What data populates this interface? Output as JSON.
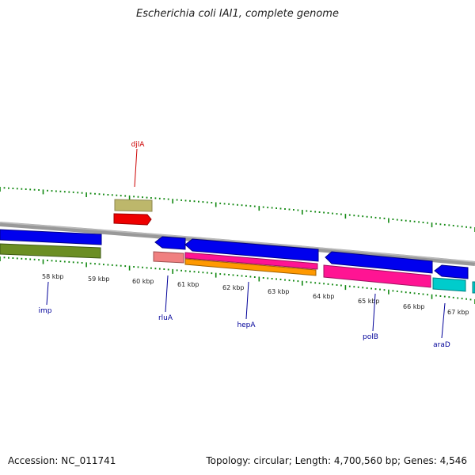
{
  "title": "Escherichia coli IAI1, complete genome",
  "footer": {
    "accession": "Accession: NC_011741",
    "summary": "Topology: circular; Length: 4,700,560 bp; Genes: 4,546"
  },
  "scale_labels": [
    "58 kbp",
    "59 kbp",
    "60 kbp",
    "61 kbp",
    "62 kbp",
    "63 kbp",
    "64 kbp",
    "65 kbp",
    "66 kbp",
    "67 kbp"
  ],
  "gene_labels": {
    "djlA": "djlA",
    "imp": "imp",
    "rluA": "rluA",
    "hepA": "hepA",
    "polB": "polB",
    "araD": "araD"
  },
  "colors": {
    "backbone": "#8c8c8c",
    "ticks": "#118811",
    "forward_label": "#cc0000",
    "reverse_label": "#000099",
    "blue_feature": "#0000ee",
    "olive_feature": "#6b8e23",
    "khaki_feature": "#bdb76b",
    "red_feature": "#ee0000",
    "salmon_feature": "#f08080",
    "magenta_feature": "#ff1493",
    "orange_feature": "#ff9900",
    "cyan_feature": "#00cccc"
  }
}
